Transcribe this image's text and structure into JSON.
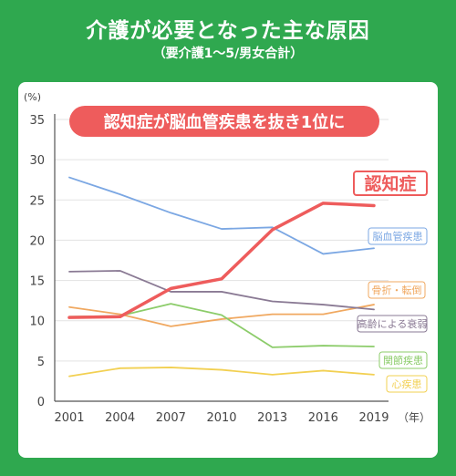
{
  "header": {
    "title": "介護が必要となった主な原因",
    "subtitle": "（要介護1～5/男女合計）"
  },
  "chart_data": {
    "type": "line",
    "annotation": "認知症が脳血管疾患を抜き1位に",
    "x": [
      "2001",
      "2004",
      "2007",
      "2010",
      "2013",
      "2016",
      "2019"
    ],
    "x_unit": "（年）",
    "y_unit": "(%)",
    "yticks": [
      "0",
      "5",
      "10",
      "15",
      "20",
      "25",
      "30",
      "35"
    ],
    "ylim": [
      0,
      35
    ],
    "grid": true,
    "series": [
      {
        "name": "認知症",
        "color": "#ee5c5c",
        "values": [
          10.4,
          10.5,
          14.0,
          15.2,
          21.3,
          24.6,
          24.3
        ]
      },
      {
        "name": "脳血管疾患",
        "color": "#7ba7e3",
        "values": [
          27.8,
          25.7,
          23.4,
          21.4,
          21.6,
          18.3,
          19.0
        ]
      },
      {
        "name": "骨折・転倒",
        "color": "#f0a860",
        "values": [
          11.7,
          10.8,
          9.3,
          10.2,
          10.8,
          10.8,
          12.0
        ]
      },
      {
        "name": "高齢による衰弱",
        "color": "#8a7a94",
        "values": [
          16.1,
          16.2,
          13.6,
          13.6,
          12.4,
          12.0,
          11.4
        ]
      },
      {
        "name": "関節疾患",
        "color": "#8ccc6a",
        "values": [
          10.5,
          10.6,
          12.1,
          10.7,
          6.7,
          6.9,
          6.8
        ]
      },
      {
        "name": "心疾患",
        "color": "#f2d052",
        "values": [
          3.1,
          4.1,
          4.2,
          3.9,
          3.3,
          3.8,
          3.3
        ]
      }
    ]
  }
}
